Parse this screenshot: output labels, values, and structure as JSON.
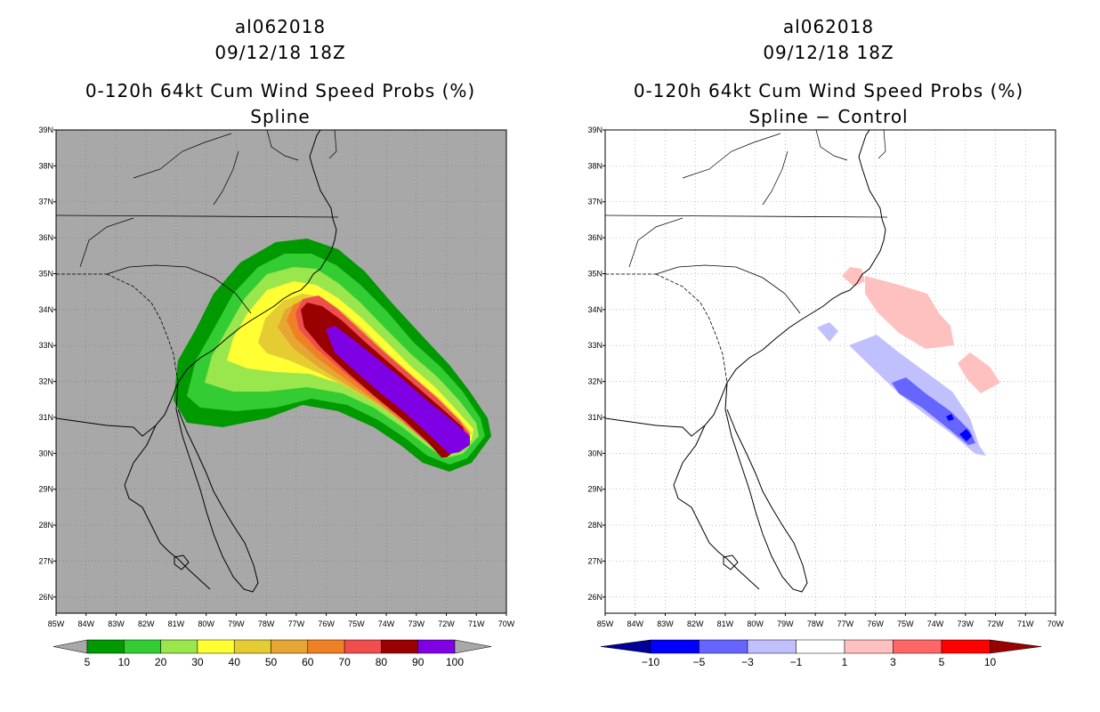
{
  "left_panel": {
    "storm_id": "al062018",
    "datetime": "09/12/18 18Z",
    "product": "0-120h 64kt Cum Wind Speed Probs (%)",
    "subtitle": "Spline",
    "background_color": "#a8a8a8",
    "colorbar": {
      "labels": [
        "5",
        "10",
        "20",
        "30",
        "40",
        "50",
        "60",
        "70",
        "80",
        "90",
        "100"
      ],
      "colors": [
        "#009900",
        "#33cc33",
        "#99e64d",
        "#ffff33",
        "#e6cc33",
        "#e6a633",
        "#f08026",
        "#f04d4d",
        "#990000",
        "#8000e6"
      ],
      "end_color": "#a8a8a8"
    }
  },
  "right_panel": {
    "storm_id": "al062018",
    "datetime": "09/12/18 18Z",
    "product": "0-120h 64kt Cum Wind Speed Probs (%)",
    "subtitle": "Spline − Control",
    "background_color": "#ffffff",
    "colorbar": {
      "labels": [
        "−10",
        "−5",
        "−3",
        "−1",
        "1",
        "3",
        "5",
        "10"
      ],
      "colors": [
        "#0000ff",
        "#6666ff",
        "#c0c0ff",
        "#ffffff",
        "#ffc0c0",
        "#ff6666",
        "#ff0000"
      ],
      "low_end_color": "#000099",
      "high_end_color": "#990000"
    }
  },
  "lat_labels": [
    "39N",
    "38N",
    "37N",
    "36N",
    "35N",
    "34N",
    "33N",
    "32N",
    "31N",
    "30N",
    "29N",
    "28N",
    "27N",
    "26N"
  ],
  "lon_labels": [
    "85W",
    "84W",
    "83W",
    "82W",
    "81W",
    "80W",
    "79W",
    "78W",
    "77W",
    "76W",
    "75W",
    "74W",
    "73W",
    "72W",
    "71W",
    "70W"
  ]
}
